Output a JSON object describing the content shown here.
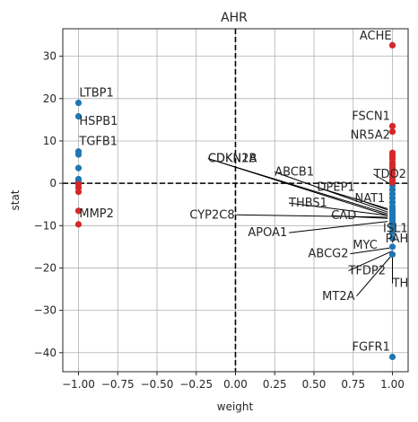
{
  "chart_data": {
    "type": "scatter",
    "title": "AHR",
    "xlabel": "weight",
    "ylabel": "stat",
    "xlim": [
      -1.1,
      1.1
    ],
    "ylim": [
      -44.5,
      36.5
    ],
    "x_ticks": [
      -1.0,
      -0.75,
      -0.5,
      -0.25,
      0.0,
      0.25,
      0.5,
      0.75,
      1.0
    ],
    "x_tick_labels": [
      "−1.00",
      "−0.75",
      "−0.50",
      "−0.25",
      "0.00",
      "0.25",
      "0.50",
      "0.75",
      "1.00"
    ],
    "y_ticks": [
      -40,
      -30,
      -20,
      -10,
      0,
      10,
      20,
      30
    ],
    "y_tick_labels": [
      "−40",
      "−30",
      "−20",
      "−10",
      "0",
      "10",
      "20",
      "30"
    ],
    "grid": true,
    "reference_lines": {
      "x": 0,
      "y": 0,
      "style": "dashed",
      "color": "#000000"
    },
    "colors": {
      "positive": "#d62728",
      "negative": "#1f77b4"
    },
    "series": [
      {
        "color": "#1f77b4",
        "points": [
          [
            -1,
            19.0
          ],
          [
            -1,
            15.8
          ],
          [
            -1,
            7.5
          ],
          [
            -1,
            6.8
          ],
          [
            -1,
            3.6
          ],
          [
            -1,
            1.0
          ],
          [
            -1,
            0.3
          ],
          [
            1,
            -0.5
          ],
          [
            1,
            -1.5
          ],
          [
            1,
            -2.5
          ],
          [
            1,
            -3.5
          ],
          [
            1,
            -4.5
          ],
          [
            1,
            -5.5
          ],
          [
            1,
            -6.2
          ],
          [
            1,
            -6.8
          ],
          [
            1,
            -7.4
          ],
          [
            1,
            -8.0
          ],
          [
            1,
            -8.6
          ],
          [
            1,
            -9.2
          ],
          [
            1,
            -9.8
          ],
          [
            1,
            -10.5
          ],
          [
            1,
            -11.5
          ],
          [
            1,
            -13.0
          ],
          [
            1,
            -15.0
          ],
          [
            1,
            -16.8
          ],
          [
            1,
            -41.0
          ]
        ]
      },
      {
        "color": "#d62728",
        "points": [
          [
            -1,
            -0.2
          ],
          [
            -1,
            -1.0
          ],
          [
            -1,
            -2.0
          ],
          [
            -1,
            -6.5
          ],
          [
            -1,
            -9.7
          ],
          [
            1,
            32.6
          ],
          [
            1,
            13.5
          ],
          [
            1,
            12.2
          ],
          [
            1,
            7.2
          ],
          [
            1,
            6.5
          ],
          [
            1,
            5.8
          ],
          [
            1,
            5.0
          ],
          [
            1,
            4.3
          ],
          [
            1,
            3.6
          ],
          [
            1,
            2.9
          ],
          [
            1,
            2.2
          ],
          [
            1,
            1.5
          ],
          [
            1,
            0.8
          ],
          [
            1,
            0.2
          ]
        ]
      }
    ],
    "annotations": [
      {
        "text": "LTBP1",
        "x": -1,
        "y": 19.0,
        "tx": -0.995,
        "ty": 20.5
      },
      {
        "text": "HSPB1",
        "x": -1,
        "y": 15.8,
        "tx": -0.995,
        "ty": 13.8
      },
      {
        "text": "TGFB1",
        "x": -1,
        "y": 7.5,
        "tx": -0.995,
        "ty": 9.0
      },
      {
        "text": "MMP2",
        "x": -1,
        "y": -9.7,
        "tx": -0.995,
        "ty": -8.0
      },
      {
        "text": "ACHE",
        "x": 1,
        "y": 32.6,
        "tx": 0.995,
        "ty": 34.0,
        "anchor": "end"
      },
      {
        "text": "FSCN1",
        "x": 1,
        "y": 13.5,
        "tx": 0.985,
        "ty": 15.0,
        "anchor": "end"
      },
      {
        "text": "NR5A2",
        "x": 1,
        "y": 12.2,
        "tx": 0.985,
        "ty": 10.5,
        "anchor": "end"
      },
      {
        "text": "CDKN1A",
        "x": 0.97,
        "y": -7.2,
        "tx": -0.175,
        "ty": 5.0,
        "anchor": "start"
      },
      {
        "text": "CDKN2B",
        "x": 0.97,
        "y": -7.6,
        "tx": -0.175,
        "ty": 5.0,
        "anchor": "start"
      },
      {
        "text": "ABCB1",
        "x": 0.97,
        "y": -6.8,
        "tx": 0.25,
        "ty": 1.8,
        "anchor": "start"
      },
      {
        "text": "TDO2",
        "x": 1,
        "y": -0.5,
        "tx": 0.88,
        "ty": 1.3,
        "anchor": "start"
      },
      {
        "text": "DPEP1",
        "x": 0.97,
        "y": -6.0,
        "tx": 0.52,
        "ty": -1.8,
        "anchor": "start"
      },
      {
        "text": "NAT1",
        "x": 0.97,
        "y": -6.3,
        "tx": 0.76,
        "ty": -4.4,
        "anchor": "start"
      },
      {
        "text": "THBS1",
        "x": 0.97,
        "y": -7.6,
        "tx": 0.34,
        "ty": -5.5,
        "anchor": "start"
      },
      {
        "text": "CAD",
        "x": 0.97,
        "y": -8.3,
        "tx": 0.61,
        "ty": -8.5,
        "anchor": "start"
      },
      {
        "text": "CYP2C8",
        "x": 0.97,
        "y": -8.0,
        "tx": -0.005,
        "ty": -8.3,
        "anchor": "end"
      },
      {
        "text": "APOA1",
        "x": 0.97,
        "y": -9.0,
        "tx": 0.33,
        "ty": -12.5,
        "anchor": "end"
      },
      {
        "text": "ISL1",
        "x": 1,
        "y": -10.5,
        "tx": 0.94,
        "ty": -11.5,
        "anchor": "start"
      },
      {
        "text": "MYC",
        "x": 0.98,
        "y": -14.5,
        "tx": 0.905,
        "ty": -15.5,
        "anchor": "end"
      },
      {
        "text": "PAH",
        "x": 1,
        "y": -13.0,
        "tx": 0.955,
        "ty": -14.0,
        "anchor": "start"
      },
      {
        "text": "ABCG2",
        "x": 0.98,
        "y": -15.3,
        "tx": 0.72,
        "ty": -17.5,
        "anchor": "end"
      },
      {
        "text": "TFDP2",
        "x": 1,
        "y": -16.0,
        "tx": 0.72,
        "ty": -21.5,
        "anchor": "start"
      },
      {
        "text": "TH",
        "x": 1,
        "y": -16.8,
        "tx": 1.0,
        "ty": -24.5,
        "anchor": "start"
      },
      {
        "text": "MT2A",
        "x": 1,
        "y": -16.8,
        "tx": 0.76,
        "ty": -27.5,
        "anchor": "end"
      },
      {
        "text": "FGFR1",
        "x": 1,
        "y": -41.0,
        "tx": 0.985,
        "ty": -39.5,
        "anchor": "end"
      }
    ]
  }
}
